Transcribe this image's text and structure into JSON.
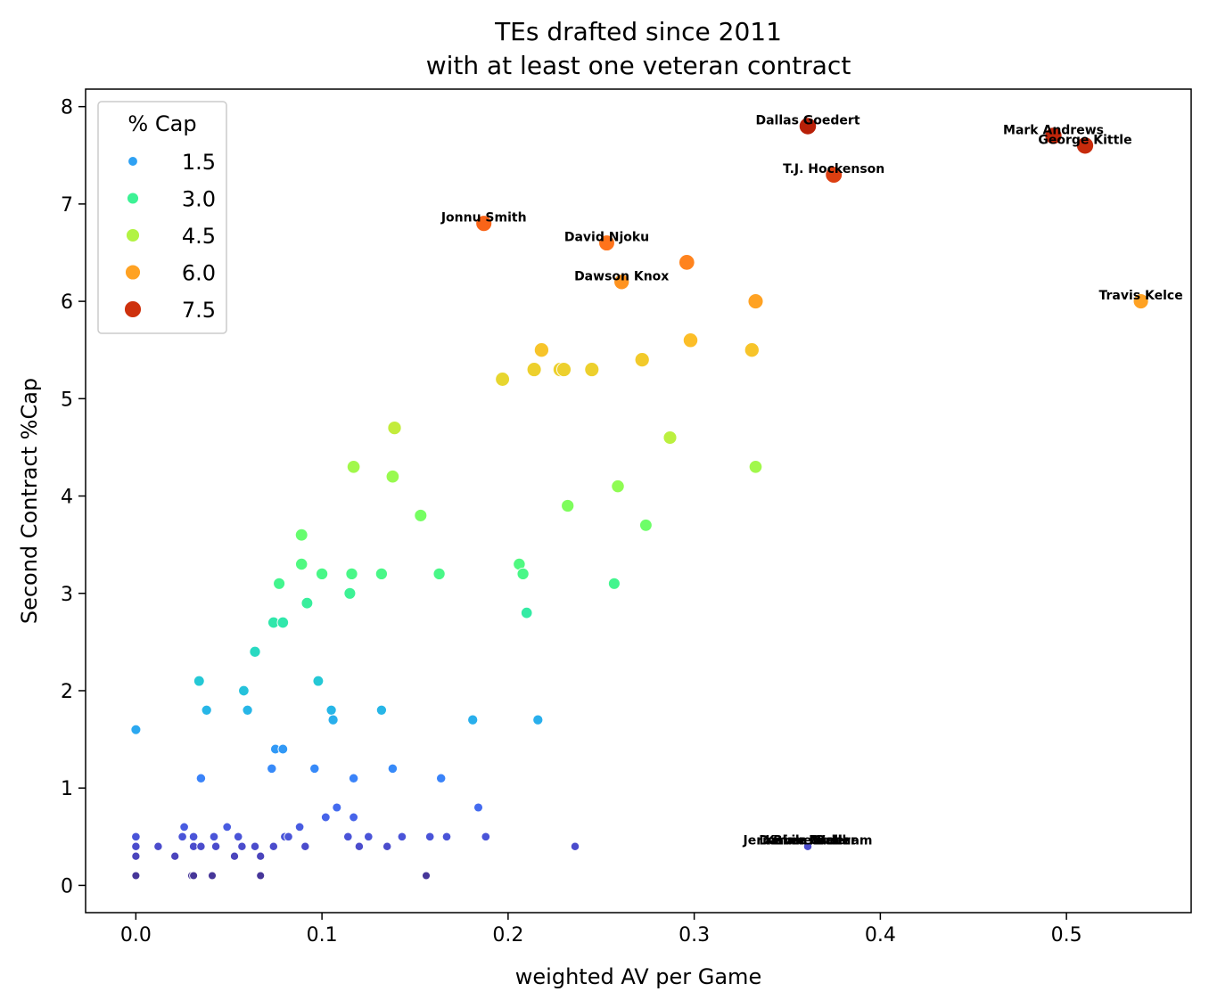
{
  "chart_data": {
    "type": "scatter",
    "title": "TEs drafted since 2011\nwith at least one veteran contract",
    "xlabel": "weighted AV per Game",
    "ylabel": "Second Contract %Cap",
    "xlim": [
      -0.027,
      0.567
    ],
    "ylim": [
      -0.28,
      8.18
    ],
    "xticks": [
      0.0,
      0.1,
      0.2,
      0.3,
      0.4,
      0.5
    ],
    "xtick_labels": [
      "0.0",
      "0.1",
      "0.2",
      "0.3",
      "0.4",
      "0.5"
    ],
    "yticks": [
      0,
      1,
      2,
      3,
      4,
      5,
      6,
      7,
      8
    ],
    "ytick_labels": [
      "0",
      "1",
      "2",
      "3",
      "4",
      "5",
      "6",
      "7",
      "8"
    ],
    "grid": false,
    "legend": {
      "title": "% Cap",
      "position": "top-left",
      "entries": [
        {
          "label": "1.5",
          "value": 1.5
        },
        {
          "label": "3.0",
          "value": 3.0
        },
        {
          "label": "4.5",
          "value": 4.5
        },
        {
          "label": "6.0",
          "value": 6.0
        },
        {
          "label": "7.5",
          "value": 7.5
        }
      ]
    },
    "color_scale": "turbo",
    "color_range": [
      0.1,
      7.8
    ],
    "points": [
      {
        "x": 0.361,
        "y": 7.8,
        "label": "Dallas Goedert"
      },
      {
        "x": 0.493,
        "y": 7.7,
        "label": "Mark Andrews"
      },
      {
        "x": 0.51,
        "y": 7.6,
        "label": "George Kittle"
      },
      {
        "x": 0.375,
        "y": 7.3,
        "label": "T.J. Hockenson"
      },
      {
        "x": 0.187,
        "y": 6.8,
        "label": "Jonnu Smith"
      },
      {
        "x": 0.253,
        "y": 6.6,
        "label": "David Njoku"
      },
      {
        "x": 0.296,
        "y": 6.4
      },
      {
        "x": 0.261,
        "y": 6.2,
        "label": "Dawson Knox"
      },
      {
        "x": 0.333,
        "y": 6.0
      },
      {
        "x": 0.54,
        "y": 6.0,
        "label": "Travis Kelce"
      },
      {
        "x": 0.298,
        "y": 5.6
      },
      {
        "x": 0.218,
        "y": 5.5
      },
      {
        "x": 0.331,
        "y": 5.5
      },
      {
        "x": 0.272,
        "y": 5.4
      },
      {
        "x": 0.214,
        "y": 5.3
      },
      {
        "x": 0.228,
        "y": 5.3
      },
      {
        "x": 0.23,
        "y": 5.3
      },
      {
        "x": 0.245,
        "y": 5.3
      },
      {
        "x": 0.197,
        "y": 5.2
      },
      {
        "x": 0.139,
        "y": 4.7
      },
      {
        "x": 0.287,
        "y": 4.6
      },
      {
        "x": 0.117,
        "y": 4.3
      },
      {
        "x": 0.333,
        "y": 4.3
      },
      {
        "x": 0.138,
        "y": 4.2
      },
      {
        "x": 0.259,
        "y": 4.1
      },
      {
        "x": 0.232,
        "y": 3.9
      },
      {
        "x": 0.153,
        "y": 3.8
      },
      {
        "x": 0.274,
        "y": 3.7
      },
      {
        "x": 0.089,
        "y": 3.6
      },
      {
        "x": 0.089,
        "y": 3.3
      },
      {
        "x": 0.206,
        "y": 3.3
      },
      {
        "x": 0.1,
        "y": 3.2
      },
      {
        "x": 0.116,
        "y": 3.2
      },
      {
        "x": 0.132,
        "y": 3.2
      },
      {
        "x": 0.163,
        "y": 3.2
      },
      {
        "x": 0.208,
        "y": 3.2
      },
      {
        "x": 0.077,
        "y": 3.1
      },
      {
        "x": 0.257,
        "y": 3.1
      },
      {
        "x": 0.115,
        "y": 3.0
      },
      {
        "x": 0.092,
        "y": 2.9
      },
      {
        "x": 0.21,
        "y": 2.8
      },
      {
        "x": 0.074,
        "y": 2.7
      },
      {
        "x": 0.079,
        "y": 2.7
      },
      {
        "x": 0.064,
        "y": 2.4
      },
      {
        "x": 0.034,
        "y": 2.1
      },
      {
        "x": 0.098,
        "y": 2.1
      },
      {
        "x": 0.058,
        "y": 2.0
      },
      {
        "x": 0.038,
        "y": 1.8
      },
      {
        "x": 0.06,
        "y": 1.8
      },
      {
        "x": 0.105,
        "y": 1.8
      },
      {
        "x": 0.132,
        "y": 1.8
      },
      {
        "x": 0.106,
        "y": 1.7
      },
      {
        "x": 0.181,
        "y": 1.7
      },
      {
        "x": 0.216,
        "y": 1.7
      },
      {
        "x": 0.0,
        "y": 1.6
      },
      {
        "x": 0.075,
        "y": 1.4
      },
      {
        "x": 0.079,
        "y": 1.4
      },
      {
        "x": 0.073,
        "y": 1.2
      },
      {
        "x": 0.096,
        "y": 1.2
      },
      {
        "x": 0.138,
        "y": 1.2
      },
      {
        "x": 0.035,
        "y": 1.1
      },
      {
        "x": 0.117,
        "y": 1.1
      },
      {
        "x": 0.164,
        "y": 1.1
      },
      {
        "x": 0.184,
        "y": 0.8
      },
      {
        "x": 0.108,
        "y": 0.8
      },
      {
        "x": 0.102,
        "y": 0.7
      },
      {
        "x": 0.117,
        "y": 0.7
      },
      {
        "x": 0.026,
        "y": 0.6
      },
      {
        "x": 0.049,
        "y": 0.6
      },
      {
        "x": 0.088,
        "y": 0.6
      },
      {
        "x": 0.0,
        "y": 0.5
      },
      {
        "x": 0.025,
        "y": 0.5
      },
      {
        "x": 0.031,
        "y": 0.5
      },
      {
        "x": 0.042,
        "y": 0.5
      },
      {
        "x": 0.055,
        "y": 0.5
      },
      {
        "x": 0.08,
        "y": 0.5
      },
      {
        "x": 0.082,
        "y": 0.5
      },
      {
        "x": 0.114,
        "y": 0.5
      },
      {
        "x": 0.125,
        "y": 0.5
      },
      {
        "x": 0.143,
        "y": 0.5
      },
      {
        "x": 0.158,
        "y": 0.5
      },
      {
        "x": 0.167,
        "y": 0.5
      },
      {
        "x": 0.188,
        "y": 0.5
      },
      {
        "x": 0.0,
        "y": 0.4
      },
      {
        "x": 0.012,
        "y": 0.4
      },
      {
        "x": 0.031,
        "y": 0.4
      },
      {
        "x": 0.035,
        "y": 0.4
      },
      {
        "x": 0.043,
        "y": 0.4
      },
      {
        "x": 0.057,
        "y": 0.4
      },
      {
        "x": 0.064,
        "y": 0.4
      },
      {
        "x": 0.074,
        "y": 0.4
      },
      {
        "x": 0.091,
        "y": 0.4
      },
      {
        "x": 0.12,
        "y": 0.4
      },
      {
        "x": 0.135,
        "y": 0.4
      },
      {
        "x": 0.236,
        "y": 0.4
      },
      {
        "x": 0.361,
        "y": 0.4,
        "label": "Kevin Rader"
      },
      {
        "x": 0.361,
        "y": 0.4,
        "label": "Blake Bell"
      },
      {
        "x": 0.361,
        "y": 0.4,
        "label": "Darren Waller"
      },
      {
        "x": 0.361,
        "y": 0.4,
        "label": "Jermaine Gresham"
      },
      {
        "x": 0.0,
        "y": 0.3
      },
      {
        "x": 0.021,
        "y": 0.3
      },
      {
        "x": 0.053,
        "y": 0.3
      },
      {
        "x": 0.067,
        "y": 0.3
      },
      {
        "x": 0.0,
        "y": 0.1
      },
      {
        "x": 0.03,
        "y": 0.1
      },
      {
        "x": 0.031,
        "y": 0.1
      },
      {
        "x": 0.041,
        "y": 0.1
      },
      {
        "x": 0.067,
        "y": 0.1
      },
      {
        "x": 0.156,
        "y": 0.1
      }
    ]
  }
}
